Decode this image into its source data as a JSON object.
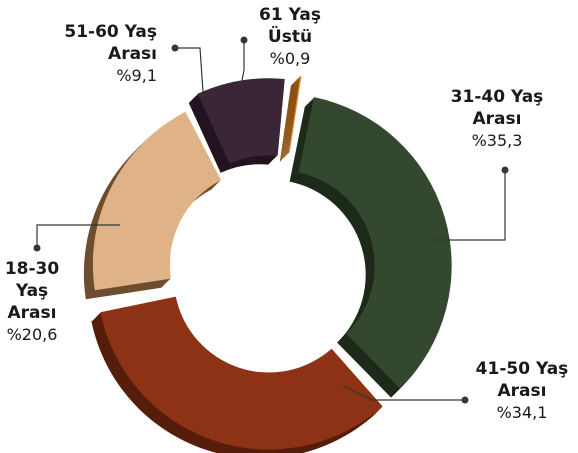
{
  "chart_data": {
    "type": "pie",
    "variant": "exploded donut (3D)",
    "slices": [
      {
        "label": "31-40 Yaş Arası",
        "label_lines": [
          "31-40 Yaş",
          "Arası"
        ],
        "value": 35.3,
        "value_text": "%35,3",
        "color": "#34482f",
        "side": "#1d2a1a"
      },
      {
        "label": "41-50 Yaş Arası",
        "label_lines": [
          "41-50 Yaş",
          "Arası"
        ],
        "value": 34.1,
        "value_text": "%34,1",
        "color": "#8e3216",
        "side": "#561d0b"
      },
      {
        "label": "18-30 Yaş Arası",
        "label_lines": [
          "18-30",
          "Yaş",
          "Arası"
        ],
        "value": 20.6,
        "value_text": "%20,6",
        "color": "#dfb287",
        "side": "#6e4c2e"
      },
      {
        "label": "51-60 Yaş Arası",
        "label_lines": [
          "51-60 Yaş",
          "Arası"
        ],
        "value": 9.1,
        "value_text": "%9,1",
        "color": "#3b2638",
        "side": "#22131f"
      },
      {
        "label": "61 Yaş Üstü",
        "label_lines": [
          "61 Yaş",
          "Üstü"
        ],
        "value": 0.9,
        "value_text": "%0,9",
        "color": "#d98a2b",
        "side": "#8c5214"
      }
    ],
    "title": "",
    "legend": "none"
  }
}
